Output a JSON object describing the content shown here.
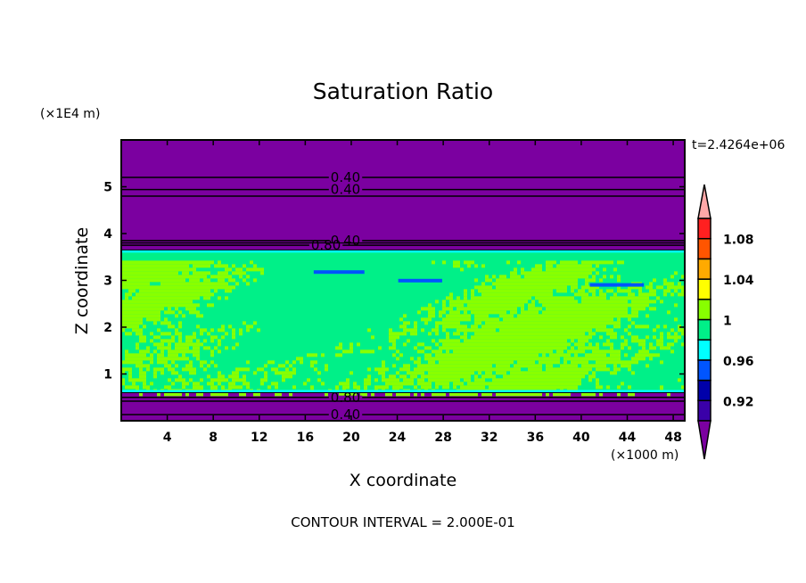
{
  "chart_data": {
    "type": "heatmap",
    "title": "Saturation Ratio",
    "xlabel": "X coordinate",
    "ylabel": "Z coordinate",
    "x_unit": "(×1000 m)",
    "y_unit": "(×1E4 m)",
    "time_label": "t=2.4264e+06",
    "footer": "CONTOUR INTERVAL = 2.000E-01",
    "xlim": [
      0,
      49
    ],
    "ylim": [
      0,
      6
    ],
    "x_ticks": [
      "4",
      "8",
      "12",
      "16",
      "20",
      "24",
      "28",
      "32",
      "36",
      "40",
      "44",
      "48"
    ],
    "x_tick_values": [
      4,
      8,
      12,
      16,
      20,
      24,
      28,
      32,
      36,
      40,
      44,
      48
    ],
    "y_ticks": [
      "1",
      "2",
      "3",
      "4",
      "5"
    ],
    "y_tick_values": [
      1,
      2,
      3,
      4,
      5
    ],
    "cloud_layer_z": [
      0.6,
      3.65
    ],
    "field_values_in_layer": [
      0.98,
      1.02
    ],
    "contour_labels": [
      {
        "text": "0.40",
        "x": 19.5,
        "z": 5.2
      },
      {
        "text": "0.40",
        "x": 19.5,
        "z": 4.94
      },
      {
        "text": "0.40",
        "x": 19.5,
        "z": 3.85
      },
      {
        "text": "0.80",
        "x": 17.8,
        "z": 3.75
      },
      {
        "text": "0.80",
        "x": 19.5,
        "z": 0.5
      },
      {
        "text": "0.40",
        "x": 19.5,
        "z": 0.13
      }
    ],
    "colorbar": {
      "levels": [
        0.9,
        0.92,
        0.94,
        0.96,
        0.98,
        1.0,
        1.02,
        1.04,
        1.06,
        1.08,
        1.1
      ],
      "tick_labels": [
        "0.92",
        "0.96",
        "1",
        "1.04",
        "1.08"
      ],
      "tick_values": [
        0.92,
        0.96,
        1.0,
        1.04,
        1.08
      ],
      "colors": [
        "#3a00a8",
        "#0000aa",
        "#0055ff",
        "#00ffff",
        "#00f088",
        "#88ff00",
        "#ffff00",
        "#ffaa00",
        "#ff5500",
        "#ff2020"
      ],
      "under_color": "#7b00a0",
      "over_color": "#ffa8a8"
    }
  }
}
